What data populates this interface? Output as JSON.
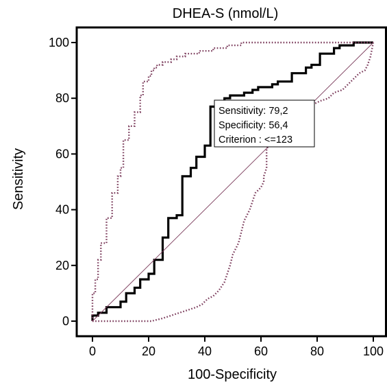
{
  "chart_data": {
    "type": "line",
    "title": "DHEA-S (nmol/L)",
    "xlabel": "100-Specificity",
    "ylabel": "Sensitivity",
    "xlim": [
      0,
      100
    ],
    "ylim": [
      0,
      100
    ],
    "x_ticks": [
      0,
      20,
      40,
      60,
      80,
      100
    ],
    "y_ticks": [
      0,
      20,
      40,
      60,
      80,
      100
    ],
    "x_tick_labels": [
      "0",
      "20",
      "40",
      "60",
      "80",
      "100"
    ],
    "y_tick_labels": [
      "0",
      "20",
      "40",
      "60",
      "80",
      "100"
    ],
    "grid": false,
    "colors": {
      "roc": "#000000",
      "ci": "#7a3a5a",
      "reference": "#7a3a5a"
    },
    "annotation": {
      "lines": [
        "Sensitivity: 79,2",
        "Specificity: 56,4",
        "Criterion : <=123"
      ]
    },
    "series": [
      {
        "style": "solid",
        "x": [
          0,
          0,
          2,
          2,
          5,
          5,
          10,
          10,
          12,
          12,
          15,
          15,
          17,
          17,
          20,
          20,
          22,
          22,
          25,
          25,
          27,
          27,
          30,
          30,
          32,
          32,
          35,
          35,
          37,
          37,
          40,
          40,
          42,
          42,
          44,
          44,
          47,
          47,
          49,
          49,
          54,
          54,
          57,
          57,
          59,
          59,
          64,
          64,
          66,
          66,
          71,
          71,
          76,
          76,
          78,
          78,
          81,
          81,
          86,
          86,
          88,
          88,
          93,
          93,
          100
        ],
        "y": [
          0,
          2,
          2,
          3,
          3,
          5,
          5,
          7,
          7,
          10,
          10,
          12,
          12,
          15,
          15,
          17,
          17,
          22,
          22,
          30,
          30,
          37,
          37,
          38,
          38,
          52,
          52,
          55,
          55,
          59,
          59,
          63,
          63,
          77,
          77,
          79,
          79,
          80,
          80,
          81,
          81,
          82,
          82,
          83,
          83,
          84,
          84,
          85,
          85,
          86,
          86,
          89,
          89,
          91,
          91,
          92,
          92,
          96,
          96,
          98,
          98,
          99,
          99,
          100,
          100
        ]
      },
      {
        "style": "dotted",
        "x": [
          0,
          0,
          1,
          1,
          2,
          2,
          3,
          3,
          5,
          5,
          7,
          7,
          9,
          9,
          10,
          10,
          11,
          11,
          13,
          13,
          15,
          15,
          17,
          17,
          18,
          18,
          20,
          20,
          21,
          21,
          22,
          22,
          23,
          23,
          25,
          25,
          28,
          28,
          30,
          30,
          33,
          33,
          38,
          38,
          43,
          43,
          48,
          48,
          53,
          53,
          58,
          58,
          63,
          63,
          70,
          70,
          78,
          78,
          87,
          87,
          95,
          95,
          100
        ],
        "y": [
          0,
          10,
          10,
          15,
          15,
          22,
          22,
          28,
          28,
          37,
          37,
          46,
          46,
          52,
          52,
          55,
          55,
          65,
          65,
          70,
          70,
          75,
          75,
          81,
          81,
          86,
          86,
          88,
          88,
          90,
          90,
          91,
          91,
          92,
          92,
          93,
          93,
          94,
          94,
          95,
          95,
          96,
          96,
          97,
          97,
          98,
          98,
          99,
          99,
          100,
          100,
          100,
          100,
          100,
          100,
          100,
          100,
          100,
          100,
          100,
          100,
          100,
          100
        ]
      },
      {
        "style": "dotted",
        "x": [
          0,
          20,
          21,
          25,
          28,
          31,
          34,
          37,
          39,
          41,
          43,
          45,
          47,
          48,
          49,
          50,
          52,
          53,
          54,
          56,
          57,
          58,
          60,
          61,
          61,
          62,
          62,
          63,
          64,
          66,
          68,
          71,
          74,
          76,
          79,
          81,
          84,
          86,
          89,
          91,
          93,
          95,
          97,
          98,
          99,
          100
        ],
        "y": [
          0,
          0,
          0,
          1,
          2,
          3,
          4,
          5,
          6,
          8,
          9,
          11,
          14,
          17,
          20,
          24,
          28,
          32,
          36,
          40,
          43,
          46,
          48,
          50,
          52,
          55,
          62,
          63,
          64,
          66,
          69,
          72,
          74,
          76,
          78,
          79,
          80,
          82,
          83,
          85,
          87,
          89,
          90,
          92,
          95,
          100
        ]
      },
      {
        "style": "reference",
        "x": [
          0,
          100
        ],
        "y": [
          0,
          100
        ]
      }
    ]
  }
}
